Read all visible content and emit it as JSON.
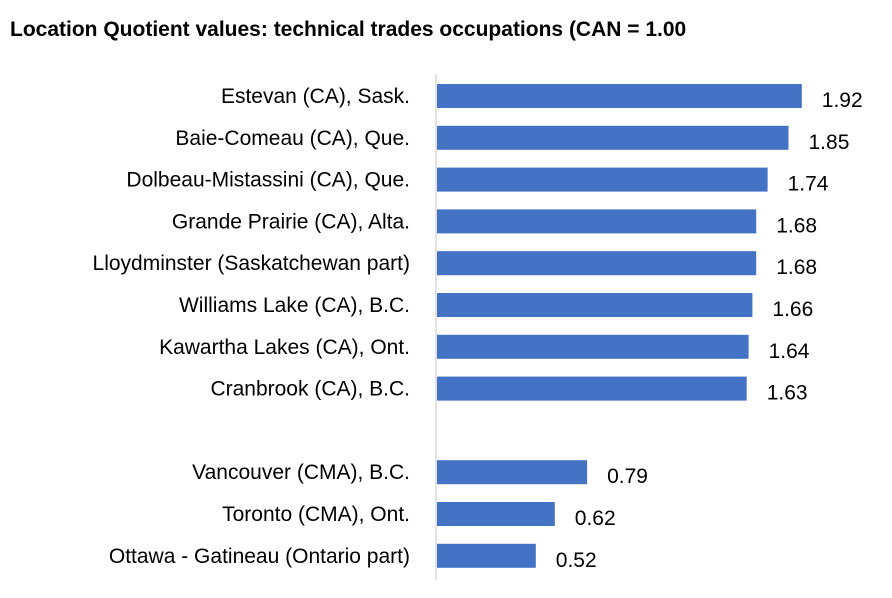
{
  "chart_data": {
    "type": "bar",
    "orientation": "horizontal",
    "title": "Location Quotient values: technical trades occupations (CAN = 1.00",
    "categories": [
      "Estevan (CA), Sask.",
      "Baie-Comeau (CA), Que.",
      "Dolbeau-Mistassini (CA), Que.",
      "Grande Prairie (CA), Alta.",
      "Lloydminster (Saskatchewan part)",
      "Williams Lake (CA), B.C.",
      "Kawartha Lakes (CA), Ont.",
      "Cranbrook (CA), B.C.",
      "",
      "Vancouver (CMA), B.C.",
      "Toronto (CMA), Ont.",
      "Ottawa - Gatineau (Ontario part)"
    ],
    "values": [
      1.92,
      1.85,
      1.74,
      1.68,
      1.68,
      1.66,
      1.64,
      1.63,
      null,
      0.79,
      0.62,
      0.52
    ],
    "value_labels": [
      "1.92",
      "1.85",
      "1.74",
      "1.68",
      "1.68",
      "1.66",
      "1.64",
      "1.63",
      "",
      "0.79",
      "0.62",
      "0.52"
    ],
    "xlim": [
      0,
      2.2
    ],
    "grid": false,
    "legend": "none",
    "bar_color": "#4472C4",
    "axis_color": "#D9D9D9"
  }
}
